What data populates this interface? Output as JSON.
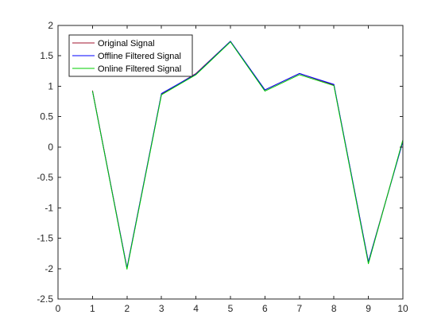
{
  "chart_data": {
    "type": "line",
    "title": "",
    "xlabel": "",
    "ylabel": "",
    "xlim": [
      0,
      10
    ],
    "ylim": [
      -2.5,
      2
    ],
    "x_ticks": [
      0,
      1,
      2,
      3,
      4,
      5,
      6,
      7,
      8,
      9,
      10
    ],
    "x_tick_labels": [
      "0",
      "1",
      "2",
      "3",
      "4",
      "5",
      "6",
      "7",
      "8",
      "9",
      "10"
    ],
    "y_ticks": [
      -2.5,
      -2,
      -1.5,
      -1,
      -0.5,
      0,
      0.5,
      1,
      1.5,
      2
    ],
    "y_tick_labels": [
      "-2.5",
      "-2",
      "-1.5",
      "-1",
      "-0.5",
      "0",
      "0.5",
      "1",
      "1.5",
      "2"
    ],
    "grid": false,
    "legend_position": "top-left",
    "x": [
      1,
      2,
      3,
      4,
      5,
      6,
      7,
      8,
      9,
      10
    ],
    "series": [
      {
        "name": "Original Signal",
        "color": "#a2142f",
        "values": [
          0.93,
          -1.99,
          0.87,
          1.21,
          1.74,
          0.94,
          1.21,
          1.02,
          -1.89,
          0.1
        ]
      },
      {
        "name": "Offline Filtered Signal",
        "color": "#0000ff",
        "values": [
          0.92,
          -1.99,
          0.88,
          1.2,
          1.74,
          0.94,
          1.21,
          1.03,
          -1.89,
          0.09
        ]
      },
      {
        "name": "Online Filtered Signal",
        "color": "#00cc00",
        "values": [
          0.92,
          -2.01,
          0.86,
          1.19,
          1.73,
          0.92,
          1.19,
          1.01,
          -1.92,
          0.12
        ]
      }
    ]
  }
}
